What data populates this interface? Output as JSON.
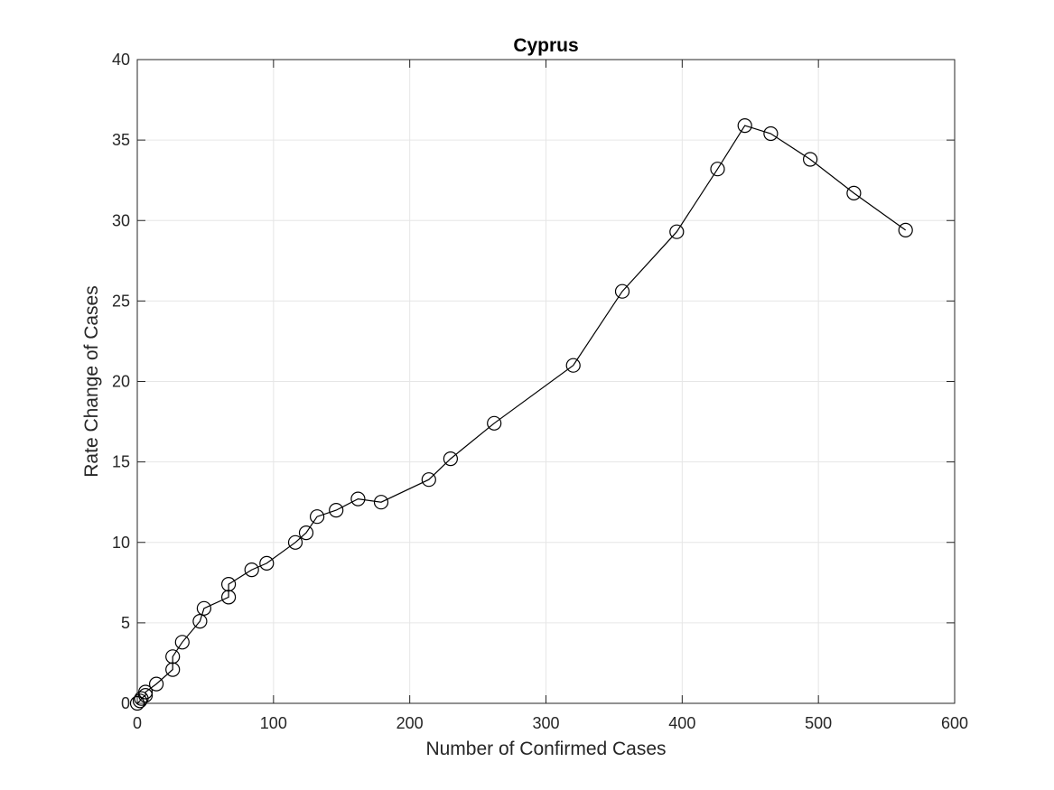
{
  "chart_data": {
    "type": "line",
    "title": "Cyprus",
    "xlabel": "Number of Confirmed Cases",
    "ylabel": "Rate Change of Cases",
    "xlim": [
      0,
      600
    ],
    "ylim": [
      0,
      40
    ],
    "xticks": [
      "0",
      "100",
      "200",
      "300",
      "400",
      "500",
      "600"
    ],
    "yticks": [
      "0",
      "5",
      "10",
      "15",
      "20",
      "25",
      "30",
      "35",
      "40"
    ],
    "grid": true,
    "marker": "open-circle",
    "line_color": "#000000",
    "axis_color": "#262626",
    "grid_color": "#e6e6e6",
    "series": [
      {
        "x": [
          0,
          2,
          3,
          6,
          6,
          14,
          26,
          26,
          33,
          46,
          49,
          67,
          67,
          84,
          95,
          116,
          124,
          132,
          146,
          162,
          179,
          214,
          230,
          262,
          320,
          356,
          396,
          426,
          446,
          465,
          494,
          526,
          564
        ],
        "y": [
          0,
          0.15,
          0.3,
          0.5,
          0.7,
          1.2,
          2.1,
          2.9,
          3.8,
          5.1,
          5.9,
          6.6,
          7.4,
          8.3,
          8.7,
          10.0,
          10.6,
          11.6,
          12.0,
          12.7,
          12.5,
          13.9,
          15.2,
          17.4,
          21.0,
          25.6,
          29.3,
          33.2,
          35.9,
          35.4,
          33.8,
          31.7,
          29.4
        ]
      }
    ]
  }
}
